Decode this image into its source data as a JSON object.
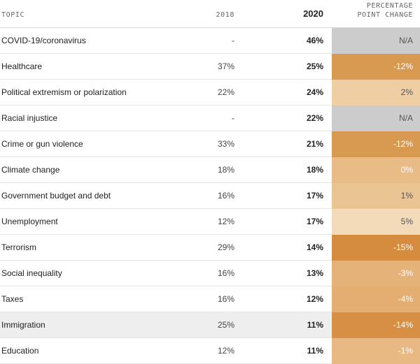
{
  "headers": {
    "topic": "TOPIC",
    "y2018": "2018",
    "y2020": "2020",
    "change_line1": "PERCENTAGE",
    "change_line2": "POINT CHANGE"
  },
  "rows": [
    {
      "topic": "COVID-19/coronavirus",
      "y2018": "-",
      "y2020": "46%",
      "change": "N/A",
      "color": "#cccccc",
      "strong": false,
      "highlight": false
    },
    {
      "topic": "Healthcare",
      "y2018": "37%",
      "y2020": "25%",
      "change": "-12%",
      "color": "#d89a50",
      "strong": true,
      "highlight": false
    },
    {
      "topic": "Political extremism or polarization",
      "y2018": "22%",
      "y2020": "24%",
      "change": "2%",
      "color": "#efcea4",
      "strong": false,
      "highlight": false
    },
    {
      "topic": "Racial injustice",
      "y2018": "-",
      "y2020": "22%",
      "change": "N/A",
      "color": "#cccccc",
      "strong": false,
      "highlight": false
    },
    {
      "topic": "Crime or gun violence",
      "y2018": "33%",
      "y2020": "21%",
      "change": "-12%",
      "color": "#d89a50",
      "strong": true,
      "highlight": false
    },
    {
      "topic": "Climate change",
      "y2018": "18%",
      "y2020": "18%",
      "change": "0%",
      "color": "#e9bb87",
      "strong": true,
      "highlight": false
    },
    {
      "topic": "Government budget and debt",
      "y2018": "16%",
      "y2020": "17%",
      "change": "1%",
      "color": "#ebc493",
      "strong": false,
      "highlight": false
    },
    {
      "topic": "Unemployment",
      "y2018": "12%",
      "y2020": "17%",
      "change": "5%",
      "color": "#f3dab9",
      "strong": false,
      "highlight": false
    },
    {
      "topic": "Terrorism",
      "y2018": "29%",
      "y2020": "14%",
      "change": "-15%",
      "color": "#d68c3e",
      "strong": true,
      "highlight": false
    },
    {
      "topic": "Social inequality",
      "y2018": "16%",
      "y2020": "13%",
      "change": "-3%",
      "color": "#e5b27a",
      "strong": true,
      "highlight": false
    },
    {
      "topic": "Taxes",
      "y2018": "16%",
      "y2020": "12%",
      "change": "-4%",
      "color": "#e4ad72",
      "strong": true,
      "highlight": false
    },
    {
      "topic": "Immigration",
      "y2018": "25%",
      "y2020": "11%",
      "change": "-14%",
      "color": "#d68f43",
      "strong": true,
      "highlight": true
    },
    {
      "topic": "Education",
      "y2018": "12%",
      "y2020": "11%",
      "change": "-1%",
      "color": "#e8b983",
      "strong": true,
      "highlight": false
    }
  ]
}
